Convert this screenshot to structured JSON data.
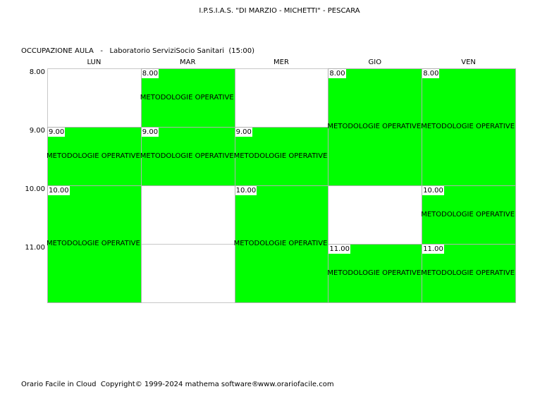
{
  "header": {
    "title": "I.P.S.I.A.S. \"DI MARZIO - MICHETTI\" - PESCARA",
    "subtitle": "OCCUPAZIONE AULA   -   Laboratorio ServiziSocio Sanitari  (15:00)"
  },
  "table": {
    "days": [
      "LUN",
      "MAR",
      "MER",
      "GIO",
      "VEN"
    ],
    "hours": [
      "8.00",
      "9.00",
      "10.00",
      "11.00"
    ],
    "lessons": [
      [
        {
          "time": "9.00",
          "rows": 1,
          "label": "METODOLOGIE OPERATIVE"
        },
        {
          "time": "10.00",
          "rows": 2,
          "label": "METODOLOGIE OPERATIVE"
        }
      ],
      [
        {
          "time": "8.00",
          "rows": 1,
          "label": "METODOLOGIE OPERATIVE"
        },
        {
          "time": "9.00",
          "rows": 1,
          "label": "METODOLOGIE OPERATIVE"
        }
      ],
      [
        {
          "time": "9.00",
          "rows": 1,
          "label": "METODOLOGIE OPERATIVE"
        },
        {
          "time": "10.00",
          "rows": 2,
          "label": "METODOLOGIE OPERATIVE"
        }
      ],
      [
        {
          "time": "8.00",
          "rows": 2,
          "label": "METODOLOGIE OPERATIVE"
        },
        {
          "time": "11.00",
          "rows": 1,
          "label": "METODOLOGIE OPERATIVE"
        }
      ],
      [
        {
          "time": "8.00",
          "rows": 2,
          "label": "METODOLOGIE OPERATIVE"
        },
        {
          "time": "10.00",
          "rows": 1,
          "label": "METODOLOGIE OPERATIVE"
        },
        {
          "time": "11.00",
          "rows": 1,
          "label": "METODOLOGIE OPERATIVE"
        }
      ]
    ]
  },
  "footer": {
    "copyright": "Orario Facile in Cloud  Copyright© 1999-2024 mathema software®",
    "website": "www.orariofacile.com"
  }
}
